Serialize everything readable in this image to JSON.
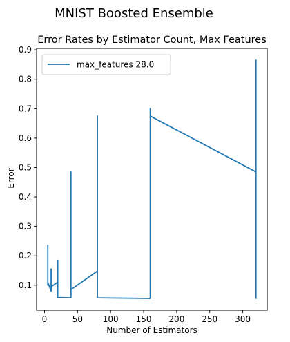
{
  "figure": {
    "suptitle": "MNIST Boosted Ensemble"
  },
  "chart_data": {
    "type": "line",
    "title": "Error Rates by Estimator Count, Max Features",
    "xlabel": "Number of Estimators",
    "ylabel": "Error",
    "xlim": [
      -12,
      337
    ],
    "ylim": [
      0.015,
      0.905
    ],
    "xticks": [
      0,
      50,
      100,
      150,
      200,
      250,
      300
    ],
    "yticks": [
      0.1,
      0.2,
      0.3,
      0.4,
      0.5,
      0.6,
      0.7,
      0.8,
      0.9
    ],
    "grid": false,
    "legend_position": "upper-left",
    "series": [
      {
        "name": "max_features 28.0",
        "color": "#1f77b4",
        "points": [
          [
            5,
            0.235
          ],
          [
            5,
            0.1
          ],
          [
            5,
            0.11
          ],
          [
            10,
            0.08
          ],
          [
            10,
            0.155
          ],
          [
            10,
            0.09
          ],
          [
            10,
            0.095
          ],
          [
            20,
            0.11
          ],
          [
            20,
            0.185
          ],
          [
            20,
            0.06
          ],
          [
            20,
            0.185
          ],
          [
            20,
            0.075
          ],
          [
            20,
            0.058
          ],
          [
            40,
            0.057
          ],
          [
            40,
            0.485
          ],
          [
            40,
            0.09
          ],
          [
            40,
            0.085
          ],
          [
            80,
            0.148
          ],
          [
            80,
            0.675
          ],
          [
            80,
            0.062
          ],
          [
            80,
            0.057
          ],
          [
            160,
            0.055
          ],
          [
            160,
            0.7
          ],
          [
            160,
            0.375
          ],
          [
            160,
            0.675
          ],
          [
            320,
            0.485
          ],
          [
            320,
            0.865
          ],
          [
            320,
            0.055
          ],
          [
            320,
            0.86
          ]
        ]
      }
    ]
  }
}
